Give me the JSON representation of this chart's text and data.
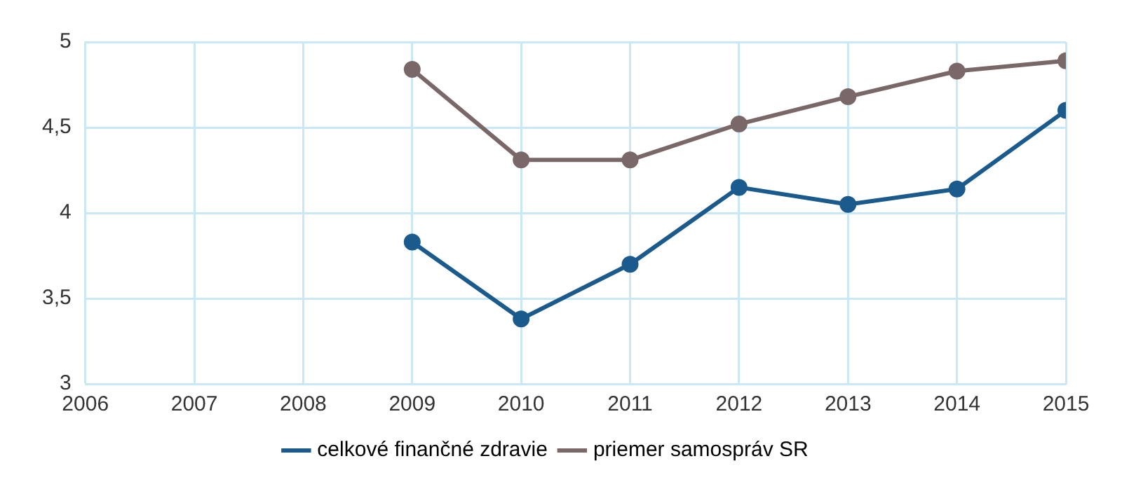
{
  "chart_data": {
    "type": "line",
    "x": [
      2009,
      2010,
      2011,
      2012,
      2013,
      2014,
      2015
    ],
    "series": [
      {
        "name": "celkové finančné zdravie",
        "color": "#1b5a8c",
        "values": [
          3.83,
          3.38,
          3.7,
          4.15,
          4.05,
          4.14,
          4.6
        ]
      },
      {
        "name": "priemer samospráv SR",
        "color": "#7a6869",
        "values": [
          4.84,
          4.31,
          4.31,
          4.52,
          4.68,
          4.83,
          4.89
        ]
      }
    ],
    "xlim": [
      2006,
      2015
    ],
    "xticks": [
      2006,
      2007,
      2008,
      2009,
      2010,
      2011,
      2012,
      2013,
      2014,
      2015
    ],
    "ylim": [
      3,
      5
    ],
    "yticks": [
      3,
      {
        "value": 3.5,
        "label": "3,5"
      },
      4,
      {
        "value": 4.5,
        "label": "4,5"
      },
      5
    ],
    "grid": true,
    "legend": "bottom",
    "marker": "circle",
    "line_style": "solid"
  }
}
